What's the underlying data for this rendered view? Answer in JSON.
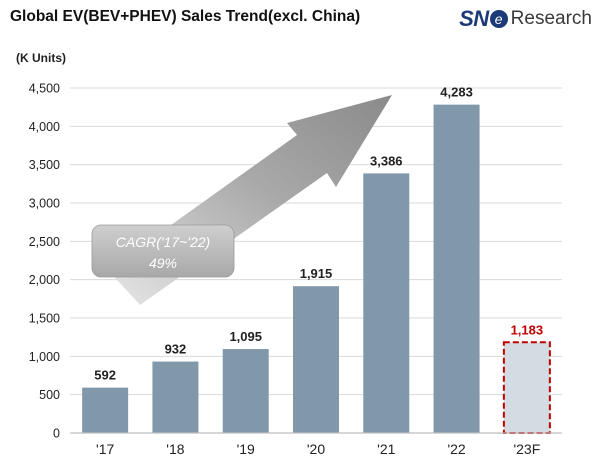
{
  "header": {
    "title": "Global EV(BEV+PHEV)  Sales Trend(excl. China)",
    "logo_sne": "SN",
    "logo_e": "e",
    "logo_research": "Research"
  },
  "chart_data": {
    "type": "bar",
    "title": "Global EV(BEV+PHEV)  Sales Trend(excl. China)",
    "ylabel": "(K Units)",
    "xlabel": "",
    "ylim": [
      0,
      4500
    ],
    "yticks": [
      0,
      500,
      1000,
      1500,
      2000,
      2500,
      3000,
      3500,
      4000,
      4500
    ],
    "ytick_labels": [
      "0",
      "500",
      "1,000",
      "1,500",
      "2,000",
      "2,500",
      "3,000",
      "3,500",
      "4,000",
      "4,500"
    ],
    "categories": [
      "'17",
      "'18",
      "'19",
      "'20",
      "'21",
      "'22",
      "'23F"
    ],
    "values": [
      592,
      932,
      1095,
      1915,
      3386,
      4283,
      1183
    ],
    "value_labels": [
      "592",
      "932",
      "1,095",
      "1,915",
      "3,386",
      "4,283",
      "1,183"
    ],
    "forecast": [
      false,
      false,
      false,
      false,
      false,
      false,
      true
    ],
    "annotation": {
      "line1": "CAGR('17~'22)",
      "line2": "49%"
    },
    "colors": {
      "bar": "#8198aa",
      "forecast_fill": "#d3dce3",
      "forecast_border": "#c00000",
      "forecast_label": "#c00000",
      "label": "#222222",
      "grid": "#d9d9d9",
      "axis": "#bfbfbf",
      "arrow": "#9c9c9c",
      "callout": "#b8b8b8"
    }
  }
}
